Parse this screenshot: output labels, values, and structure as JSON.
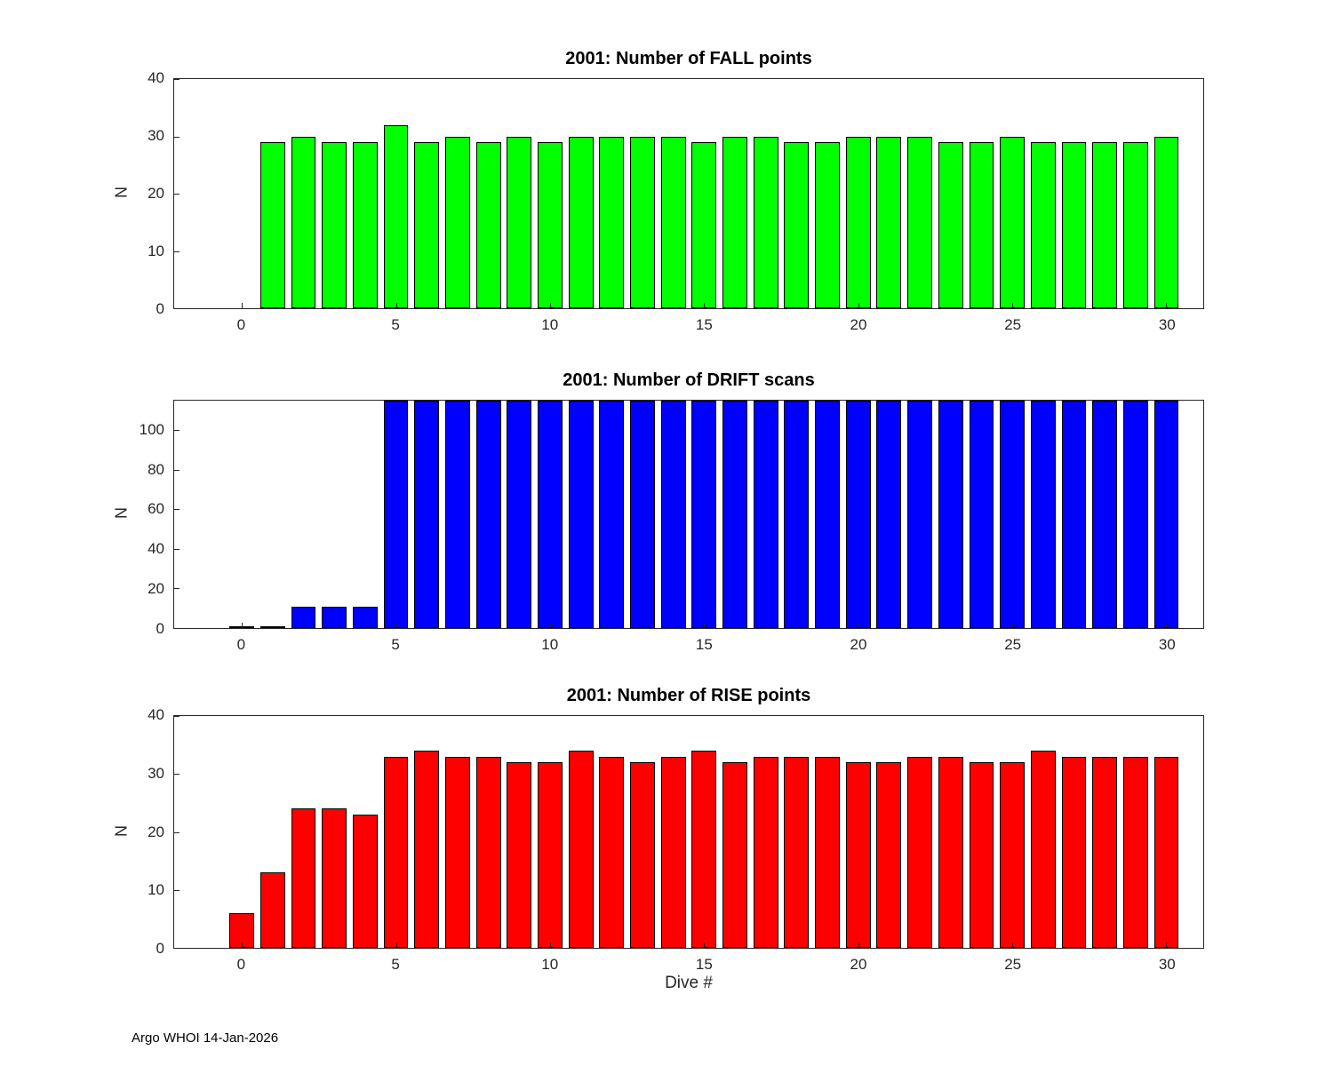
{
  "figure": {
    "xlabel": "Dive #",
    "footer": "Argo WHOI 14-Jan-2026"
  },
  "chart_data": [
    {
      "type": "bar",
      "title": "2001: Number of FALL points",
      "ylabel": "N",
      "bar_color": "#00ff00",
      "edge_color": "#000000",
      "bar_width": 0.8,
      "xlim": [
        -2.2,
        31.2
      ],
      "ylim": [
        0,
        40
      ],
      "xticks": [
        0,
        5,
        10,
        15,
        20,
        25,
        30
      ],
      "yticks": [
        0,
        10,
        20,
        30,
        40
      ],
      "grid": false,
      "x": [
        1,
        2,
        3,
        4,
        5,
        6,
        7,
        8,
        9,
        10,
        11,
        12,
        13,
        14,
        15,
        16,
        17,
        18,
        19,
        20,
        21,
        22,
        23,
        24,
        25,
        26,
        27,
        28,
        29,
        30
      ],
      "values": [
        29,
        30,
        29,
        29,
        32,
        29,
        30,
        29,
        30,
        29,
        30,
        30,
        30,
        30,
        29,
        30,
        30,
        29,
        29,
        30,
        30,
        30,
        29,
        29,
        30,
        29,
        29,
        29,
        29,
        30
      ]
    },
    {
      "type": "bar",
      "title": "2001: Number of DRIFT scans",
      "ylabel": "N",
      "bar_color": "#0000ff",
      "edge_color": "#000000",
      "bar_width": 0.8,
      "xlim": [
        -2.2,
        31.2
      ],
      "ylim": [
        0,
        115
      ],
      "xticks": [
        0,
        5,
        10,
        15,
        20,
        25,
        30
      ],
      "yticks": [
        0,
        20,
        40,
        60,
        80,
        100
      ],
      "grid": false,
      "x": [
        0,
        1,
        2,
        3,
        4,
        5,
        6,
        7,
        8,
        9,
        10,
        11,
        12,
        13,
        14,
        15,
        16,
        17,
        18,
        19,
        20,
        21,
        22,
        23,
        24,
        25,
        26,
        27,
        28,
        29,
        30
      ],
      "values": [
        0,
        0,
        11,
        11,
        11,
        116,
        116,
        116,
        116,
        116,
        116,
        116,
        116,
        116,
        116,
        116,
        116,
        116,
        116,
        116,
        116,
        116,
        116,
        116,
        116,
        116,
        116,
        116,
        116,
        116,
        116
      ]
    },
    {
      "type": "bar",
      "title": "2001: Number of RISE points",
      "ylabel": "N",
      "bar_color": "#ff0000",
      "edge_color": "#000000",
      "bar_width": 0.8,
      "xlim": [
        -2.2,
        31.2
      ],
      "ylim": [
        0,
        40
      ],
      "xticks": [
        0,
        5,
        10,
        15,
        20,
        25,
        30
      ],
      "yticks": [
        0,
        10,
        20,
        30,
        40
      ],
      "grid": false,
      "x": [
        0,
        1,
        2,
        3,
        4,
        5,
        6,
        7,
        8,
        9,
        10,
        11,
        12,
        13,
        14,
        15,
        16,
        17,
        18,
        19,
        20,
        21,
        22,
        23,
        24,
        25,
        26,
        27,
        28,
        29,
        30
      ],
      "values": [
        6,
        13,
        24,
        24,
        23,
        33,
        34,
        33,
        33,
        32,
        32,
        34,
        33,
        32,
        33,
        34,
        32,
        33,
        33,
        33,
        32,
        32,
        33,
        33,
        32,
        32,
        34,
        33,
        33,
        33,
        33
      ]
    }
  ]
}
